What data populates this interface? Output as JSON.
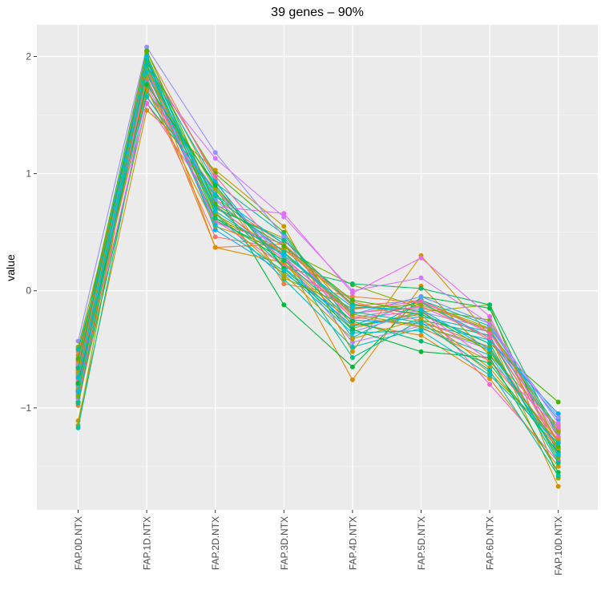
{
  "chart_data": {
    "type": "line",
    "title": "39  genes –  90%",
    "xlabel": "",
    "ylabel": "value",
    "categories": [
      "FAP.0D.NTX",
      "FAP.1D.NTX",
      "FAP.2D.NTX",
      "FAP.3D.NTX",
      "FAP.4D.NTX",
      "FAP.5D.NTX",
      "FAP.6D.NTX",
      "FAP.10D.NTX"
    ],
    "y_ticks": [
      -1,
      0,
      1,
      2
    ],
    "y_tick_labels": [
      "−1",
      "0",
      "1",
      "2"
    ],
    "ylim": [
      -1.87,
      2.27
    ],
    "grid": true,
    "legend": "none",
    "colors": {
      "panel": "#EBEBEB",
      "grid_major": "#FFFFFF",
      "grid_minor": "#F5F5F5",
      "series_palette": [
        "#F8766D",
        "#ED813E",
        "#DE8C00",
        "#CD9600",
        "#B79F00",
        "#9DA700",
        "#7CAE00",
        "#49B500",
        "#00BA38",
        "#00BE67",
        "#00C08B",
        "#00C1A9",
        "#00BFC4",
        "#00BBDC",
        "#00B4EF",
        "#00A9FF",
        "#619CFF",
        "#9590FF",
        "#B983FF",
        "#D277FF",
        "#E76BF3",
        "#F564E3",
        "#FD61D1",
        "#FF62BC",
        "#FF67A4"
      ]
    },
    "series": [
      {
        "values": [
          -0.62,
          1.9,
          0.78,
          0.4,
          -0.13,
          -0.08,
          -0.35,
          -1.2
        ]
      },
      {
        "values": [
          -0.7,
          2.04,
          0.95,
          0.06,
          -0.05,
          -0.1,
          -0.42,
          -1.28
        ]
      },
      {
        "values": [
          -0.55,
          1.72,
          0.72,
          0.3,
          -0.76,
          0.04,
          -0.55,
          -1.15
        ]
      },
      {
        "values": [
          -1.11,
          1.54,
          1.03,
          0.55,
          -0.52,
          0.3,
          -0.38,
          -1.67
        ]
      },
      {
        "values": [
          -0.85,
          1.85,
          0.7,
          0.45,
          -0.2,
          -0.1,
          -0.32,
          -1.35
        ]
      },
      {
        "values": [
          -1.15,
          1.98,
          0.88,
          0.23,
          -0.32,
          -0.18,
          -0.12,
          -1.6
        ]
      },
      {
        "values": [
          -0.78,
          1.8,
          0.62,
          0.35,
          0.05,
          -0.15,
          -0.25,
          -1.3
        ]
      },
      {
        "values": [
          -0.68,
          1.95,
          1.0,
          0.5,
          -0.3,
          -0.2,
          -0.45,
          -0.95
        ]
      },
      {
        "values": [
          -0.95,
          1.6,
          0.85,
          -0.12,
          -0.65,
          -0.05,
          -0.15,
          -1.4
        ]
      },
      {
        "values": [
          -0.8,
          2.0,
          0.73,
          0.2,
          0.06,
          0.02,
          -0.12,
          -1.25
        ]
      },
      {
        "values": [
          -0.72,
          1.88,
          0.6,
          0.31,
          -0.57,
          -0.25,
          -0.38,
          -1.45
        ]
      },
      {
        "values": [
          -1.17,
          1.7,
          0.92,
          0.48,
          -0.3,
          -0.08,
          -0.3,
          -1.18
        ]
      },
      {
        "values": [
          -0.88,
          1.92,
          0.66,
          0.1,
          -0.48,
          -0.32,
          -0.55,
          -1.35
        ]
      },
      {
        "values": [
          -0.6,
          1.78,
          0.82,
          0.4,
          -0.4,
          -0.1,
          -0.4,
          -1.2
        ]
      },
      {
        "values": [
          -0.65,
          1.93,
          0.93,
          0.2,
          -0.3,
          -0.22,
          -0.35,
          -1.1
        ]
      },
      {
        "values": [
          -0.58,
          1.98,
          0.52,
          0.15,
          -0.25,
          -0.28,
          -0.42,
          -1.05
        ]
      },
      {
        "values": [
          -0.82,
          1.84,
          0.77,
          0.33,
          -0.2,
          -0.05,
          -0.28,
          -1.22
        ]
      },
      {
        "values": [
          -0.43,
          2.08,
          1.18,
          0.46,
          -0.35,
          -0.18,
          -0.32,
          -1.08
        ]
      },
      {
        "values": [
          -0.75,
          1.65,
          0.86,
          0.28,
          -0.44,
          -0.3,
          -0.5,
          -1.33
        ]
      },
      {
        "values": [
          -0.92,
          1.86,
          1.13,
          0.63,
          0.0,
          0.11,
          -0.28,
          -1.13
        ]
      },
      {
        "values": [
          -0.63,
          1.75,
          0.72,
          0.66,
          -0.02,
          0.28,
          -0.22,
          -1.38
        ]
      },
      {
        "values": [
          -0.73,
          1.89,
          0.58,
          0.4,
          -0.24,
          -0.17,
          -0.6,
          -1.17
        ]
      },
      {
        "values": [
          -0.87,
          1.6,
          0.73,
          0.27,
          -0.19,
          -0.14,
          -0.8,
          -1.46
        ]
      },
      {
        "values": [
          -0.67,
          1.82,
          0.6,
          0.22,
          -0.16,
          -0.09,
          -0.36,
          -1.25
        ]
      },
      {
        "values": [
          -0.77,
          1.97,
          0.98,
          0.29,
          -0.23,
          -0.13,
          -0.4,
          -1.3
        ]
      },
      {
        "values": [
          -0.52,
          1.73,
          0.46,
          0.36,
          -0.09,
          -0.26,
          -0.48,
          -1.36
        ]
      },
      {
        "values": [
          -0.98,
          1.83,
          0.37,
          0.4,
          -0.22,
          -0.31,
          -0.6,
          -1.27
        ]
      },
      {
        "values": [
          -0.6,
          1.94,
          0.37,
          0.24,
          -0.28,
          -0.38,
          -0.75,
          -1.5
        ]
      },
      {
        "values": [
          -0.84,
          1.72,
          0.55,
          0.35,
          -0.11,
          -0.21,
          -0.66,
          -1.35
        ]
      },
      {
        "values": [
          -0.7,
          1.9,
          0.67,
          0.14,
          -0.41,
          -0.24,
          -0.7,
          -1.28
        ]
      },
      {
        "values": [
          -0.48,
          1.84,
          0.87,
          0.11,
          -0.15,
          -0.12,
          -0.33,
          -1.2
        ]
      },
      {
        "values": [
          -0.9,
          2.02,
          0.65,
          0.32,
          -0.2,
          -0.3,
          -0.48,
          -1.42
        ]
      },
      {
        "values": [
          -0.58,
          2.05,
          0.74,
          0.38,
          -0.08,
          -0.18,
          -0.52,
          -1.33
        ]
      },
      {
        "values": [
          -0.79,
          1.76,
          0.9,
          0.19,
          -0.33,
          -0.52,
          -0.57,
          -1.55
        ]
      },
      {
        "values": [
          -0.66,
          1.98,
          0.62,
          0.26,
          -0.26,
          -0.43,
          -0.62,
          -1.38
        ]
      },
      {
        "values": [
          -0.96,
          1.93,
          0.71,
          0.43,
          -0.12,
          -0.2,
          -0.45,
          -1.47
        ]
      },
      {
        "values": [
          -0.5,
          1.66,
          0.81,
          0.33,
          -0.18,
          -0.27,
          -0.68,
          -1.58
        ]
      },
      {
        "values": [
          -0.74,
          1.87,
          0.56,
          0.17,
          -0.36,
          -0.34,
          -0.72,
          -1.3
        ]
      },
      {
        "values": [
          -0.86,
          2.0,
          0.68,
          0.3,
          -0.14,
          -0.16,
          -0.5,
          -1.4
        ]
      }
    ]
  }
}
